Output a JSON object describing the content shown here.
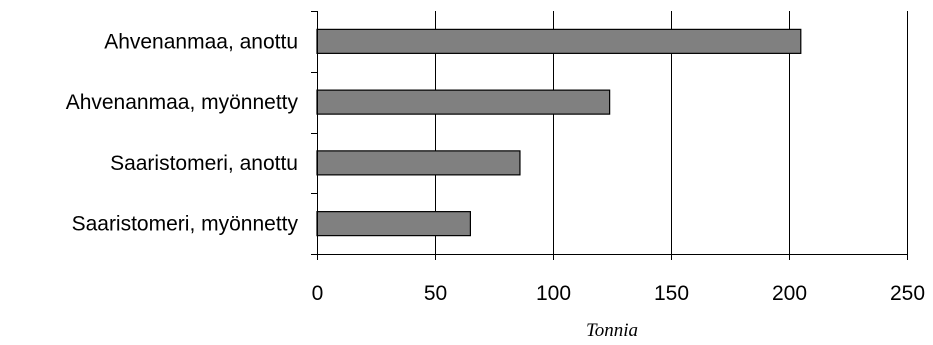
{
  "colors": {
    "bar": "#808080",
    "grid": "#000000"
  },
  "chart_data": {
    "type": "bar",
    "orientation": "horizontal",
    "categories": [
      "Ahvenanmaa, anottu",
      "Ahvenanmaa, myönnetty",
      "Saaristomeri, anottu",
      "Saaristomeri, myönnetty"
    ],
    "values": [
      205,
      124,
      86,
      65
    ],
    "xlabel": "Tonnia",
    "xlim": [
      0,
      250
    ],
    "xticks": [
      0,
      50,
      100,
      150,
      200,
      250
    ],
    "grid": true
  }
}
